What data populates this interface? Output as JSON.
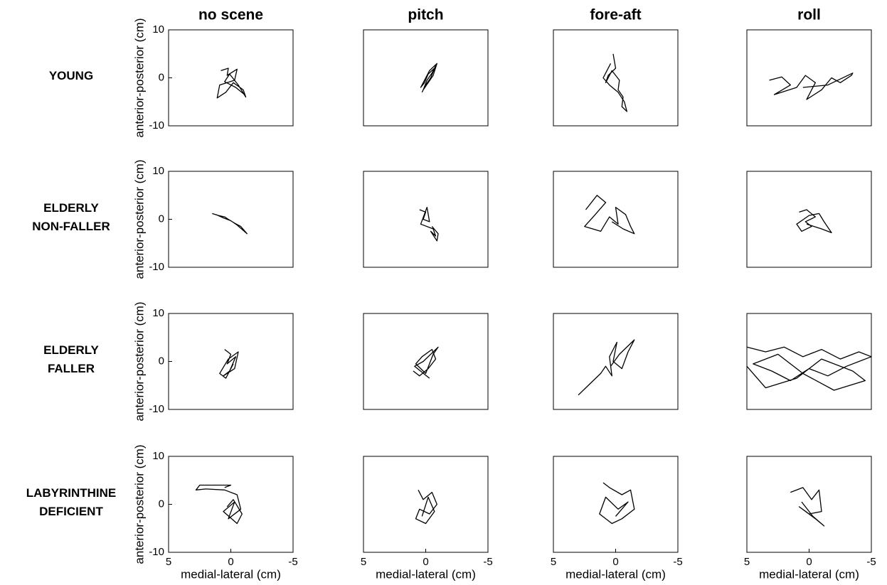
{
  "columns": [
    "no scene",
    "pitch",
    "fore-aft",
    "roll"
  ],
  "rows": [
    [
      "YOUNG"
    ],
    [
      "ELDERLY",
      "NON-FALLER"
    ],
    [
      "ELDERLY",
      "FALLER"
    ],
    [
      "LABYRINTHINE",
      "DEFICIENT"
    ]
  ],
  "chart_data": [
    {
      "type": "line",
      "xlim": [
        5,
        -5
      ],
      "ylim": [
        -10,
        10
      ],
      "yticks": [
        10,
        0,
        -10
      ],
      "ylabel": "anterior-posterior (cm)",
      "x": [
        0.8,
        0.2,
        0.3,
        -0.5,
        -0.3,
        0.9,
        1.1,
        0.4,
        -0.2,
        -1.0,
        -1.2,
        -0.6,
        0.1,
        0.5,
        -0.4,
        -1.1
      ],
      "values": [
        1.5,
        2.0,
        0.5,
        1.8,
        -0.5,
        -1.5,
        -4.2,
        -3.0,
        -1.0,
        -2.5,
        -4.0,
        -1.5,
        0.8,
        -0.8,
        -2.0,
        -3.5
      ]
    },
    {
      "type": "line",
      "xlim": [
        5,
        -5
      ],
      "ylim": [
        -10,
        10
      ],
      "x": [
        0.3,
        0.0,
        -0.4,
        -0.8,
        -0.5,
        -0.1,
        0.2,
        -0.6,
        -0.9,
        -0.3,
        0.4,
        0.1,
        -0.2,
        -0.7
      ],
      "values": [
        -3.0,
        -1.5,
        0.0,
        2.5,
        1.0,
        -0.5,
        -2.5,
        0.5,
        3.0,
        1.5,
        -2.0,
        -1.0,
        0.8,
        2.0
      ]
    },
    {
      "type": "line",
      "xlim": [
        5,
        -5
      ],
      "ylim": [
        -10,
        10
      ],
      "x": [
        0.2,
        0.0,
        0.6,
        0.8,
        0.3,
        -0.3,
        -0.2,
        -0.6,
        -0.5,
        -0.9,
        -0.7,
        -0.2,
        0.5,
        1.0,
        0.4
      ],
      "values": [
        5.0,
        2.0,
        0.5,
        -1.0,
        1.5,
        -0.5,
        -2.5,
        -4.0,
        -6.0,
        -7.0,
        -5.0,
        -3.0,
        -1.5,
        0.0,
        3.0
      ]
    },
    {
      "type": "line",
      "xlim": [
        5,
        -5
      ],
      "ylim": [
        -10,
        10
      ],
      "x": [
        3.2,
        2.2,
        1.5,
        2.8,
        1.0,
        0.3,
        -0.5,
        0.2,
        -1.0,
        -1.8,
        -2.5,
        -3.4,
        -3.5,
        -1.5,
        0.5
      ],
      "values": [
        -0.5,
        0.2,
        -1.5,
        -3.5,
        -2.0,
        0.5,
        -1.0,
        -4.5,
        -2.5,
        0.0,
        -1.0,
        0.5,
        1.0,
        -1.5,
        -2.0
      ]
    },
    {
      "type": "line",
      "xlim": [
        5,
        -5
      ],
      "ylim": [
        -10,
        10
      ],
      "yticks": [
        10,
        0,
        -10
      ],
      "ylabel": "anterior-posterior (cm)",
      "x": [
        1.5,
        1.0,
        0.5,
        0.2,
        -0.3,
        -0.8,
        -1.3,
        -0.5,
        0.0,
        0.6,
        1.2
      ],
      "values": [
        1.2,
        0.8,
        0.5,
        0.0,
        -0.8,
        -1.5,
        -3.0,
        -1.2,
        -0.3,
        0.3,
        1.0
      ]
    },
    {
      "type": "line",
      "xlim": [
        5,
        -5
      ],
      "ylim": [
        -10,
        10
      ],
      "x": [
        0.5,
        0.0,
        0.2,
        -0.3,
        -0.1,
        0.4,
        -0.6,
        -0.8,
        -0.4,
        -0.9,
        -1.0,
        -0.5
      ],
      "values": [
        2.0,
        1.5,
        0.0,
        -0.5,
        2.5,
        -1.0,
        -2.0,
        -3.5,
        -2.5,
        -4.5,
        -3.0,
        -1.5
      ]
    },
    {
      "type": "line",
      "xlim": [
        5,
        -5
      ],
      "ylim": [
        -10,
        10
      ],
      "x": [
        2.4,
        1.5,
        0.8,
        1.8,
        2.5,
        1.2,
        0.5,
        -0.2,
        0.0,
        -0.8,
        -1.2,
        -1.5,
        -0.6,
        0.3
      ],
      "values": [
        2.0,
        5.0,
        3.5,
        0.5,
        -1.5,
        -2.5,
        0.5,
        -1.0,
        2.5,
        1.0,
        -1.5,
        -3.0,
        -2.0,
        -0.5
      ]
    },
    {
      "type": "line",
      "xlim": [
        5,
        -5
      ],
      "ylim": [
        -10,
        10
      ],
      "x": [
        0.8,
        0.2,
        -0.5,
        0.3,
        -0.2,
        0.6,
        1.0,
        0.0,
        -0.8,
        -1.2,
        -1.8,
        -1.0,
        0.2
      ],
      "values": [
        1.5,
        2.0,
        0.5,
        -0.5,
        -1.5,
        -2.5,
        -1.0,
        0.8,
        1.2,
        -0.5,
        -2.8,
        -2.0,
        -1.0
      ]
    },
    {
      "type": "line",
      "xlim": [
        5,
        -5
      ],
      "ylim": [
        -10,
        10
      ],
      "yticks": [
        10,
        0,
        -10
      ],
      "ylabel": "anterior-posterior (cm)",
      "x": [
        0.5,
        0.0,
        0.3,
        -0.4,
        0.1,
        0.6,
        -0.3,
        -0.6,
        0.2,
        0.9,
        0.4,
        -0.2
      ],
      "values": [
        2.5,
        1.5,
        -0.5,
        1.0,
        -2.0,
        -3.0,
        -1.5,
        2.0,
        0.5,
        -2.5,
        -3.5,
        -0.5
      ]
    },
    {
      "type": "line",
      "xlim": [
        5,
        -5
      ],
      "ylim": [
        -10,
        10
      ],
      "x": [
        1.0,
        0.5,
        -0.2,
        -0.8,
        -0.5,
        0.3,
        0.8,
        0.0,
        -0.6,
        -1.0,
        0.2,
        0.9,
        -0.3
      ],
      "values": [
        -2.0,
        -3.0,
        -1.5,
        0.5,
        2.5,
        1.0,
        -0.5,
        -2.5,
        1.5,
        3.0,
        0.0,
        -1.0,
        -3.5
      ]
    },
    {
      "type": "line",
      "xlim": [
        5,
        -5
      ],
      "ylim": [
        -10,
        10
      ],
      "x": [
        3.0,
        2.4,
        1.8,
        1.2,
        0.8,
        0.3,
        0.5,
        -0.1,
        0.2,
        -0.5,
        -1.0,
        -1.5,
        -0.3,
        0.4
      ],
      "values": [
        -7.0,
        -5.5,
        -4.0,
        -2.5,
        -1.0,
        -3.0,
        1.0,
        4.0,
        0.0,
        -1.5,
        2.0,
        4.5,
        1.5,
        -1.0
      ]
    },
    {
      "type": "line",
      "xlim": [
        5,
        -5
      ],
      "ylim": [
        -10,
        10
      ],
      "x": [
        5.0,
        3.5,
        2.0,
        0.5,
        -1.0,
        -2.5,
        -4.0,
        -5.0,
        -3.0,
        -1.5,
        0.0,
        1.5,
        3.0,
        4.5,
        2.5,
        0.5,
        -2.0,
        -4.5,
        -3.5,
        -1.0,
        1.0,
        3.5,
        5.0
      ],
      "values": [
        3.0,
        2.0,
        3.0,
        1.0,
        2.5,
        0.5,
        2.0,
        1.0,
        -1.0,
        -3.0,
        -1.5,
        -4.0,
        -2.0,
        -0.5,
        1.5,
        -2.5,
        -6.0,
        -4.0,
        -2.0,
        0.5,
        -3.5,
        -5.5,
        -1.0
      ]
    },
    {
      "type": "line",
      "xlim": [
        5,
        -5
      ],
      "ylim": [
        -10,
        10
      ],
      "yticks": [
        10,
        0,
        -10
      ],
      "ylabel": "anterior-posterior (cm)",
      "xticks": [
        5,
        0,
        -5
      ],
      "xlabel": "medial-lateral (cm)",
      "x": [
        0.5,
        0.0,
        2.5,
        2.8,
        2.0,
        0.5,
        -0.5,
        -0.8,
        0.2,
        -0.3,
        0.6,
        -0.5,
        -0.9,
        -0.2,
        0.3
      ],
      "values": [
        3.5,
        4.0,
        4.0,
        3.0,
        3.2,
        3.0,
        2.0,
        -1.0,
        -3.0,
        0.5,
        -1.5,
        -4.0,
        -2.0,
        1.0,
        -0.5
      ]
    },
    {
      "type": "line",
      "xlim": [
        5,
        -5
      ],
      "ylim": [
        -10,
        10
      ],
      "xticks": [
        5,
        0,
        -5
      ],
      "xlabel": "medial-lateral (cm)",
      "x": [
        0.6,
        0.2,
        -0.5,
        -0.9,
        -0.3,
        0.5,
        0.8,
        0.0,
        -0.7,
        -0.2,
        0.3
      ],
      "values": [
        3.0,
        1.0,
        2.5,
        0.0,
        -2.0,
        -1.0,
        -3.0,
        -4.0,
        -1.5,
        1.5,
        -2.5
      ]
    },
    {
      "type": "line",
      "xlim": [
        5,
        -5
      ],
      "ylim": [
        -10,
        10
      ],
      "xticks": [
        5,
        0,
        -5
      ],
      "xlabel": "medial-lateral (cm)",
      "x": [
        1.0,
        0.5,
        -0.5,
        -1.2,
        -1.5,
        -0.5,
        0.3,
        1.3,
        0.8,
        -0.2,
        -1.0,
        0.0
      ],
      "values": [
        4.5,
        3.5,
        2.0,
        3.0,
        -1.0,
        -3.0,
        -4.0,
        -2.0,
        1.5,
        -1.0,
        0.5,
        -2.5
      ]
    },
    {
      "type": "line",
      "xlim": [
        5,
        -5
      ],
      "ylim": [
        -10,
        10
      ],
      "xticks": [
        5,
        0,
        -5
      ],
      "xlabel": "medial-lateral (cm)",
      "x": [
        1.5,
        0.5,
        -0.2,
        -0.8,
        -1.0,
        0.0,
        0.8,
        -0.5,
        -1.2,
        -0.3,
        0.6
      ],
      "values": [
        2.5,
        3.5,
        1.0,
        3.0,
        -1.5,
        -2.0,
        -0.5,
        -3.0,
        -4.5,
        -2.5,
        0.5
      ]
    }
  ]
}
